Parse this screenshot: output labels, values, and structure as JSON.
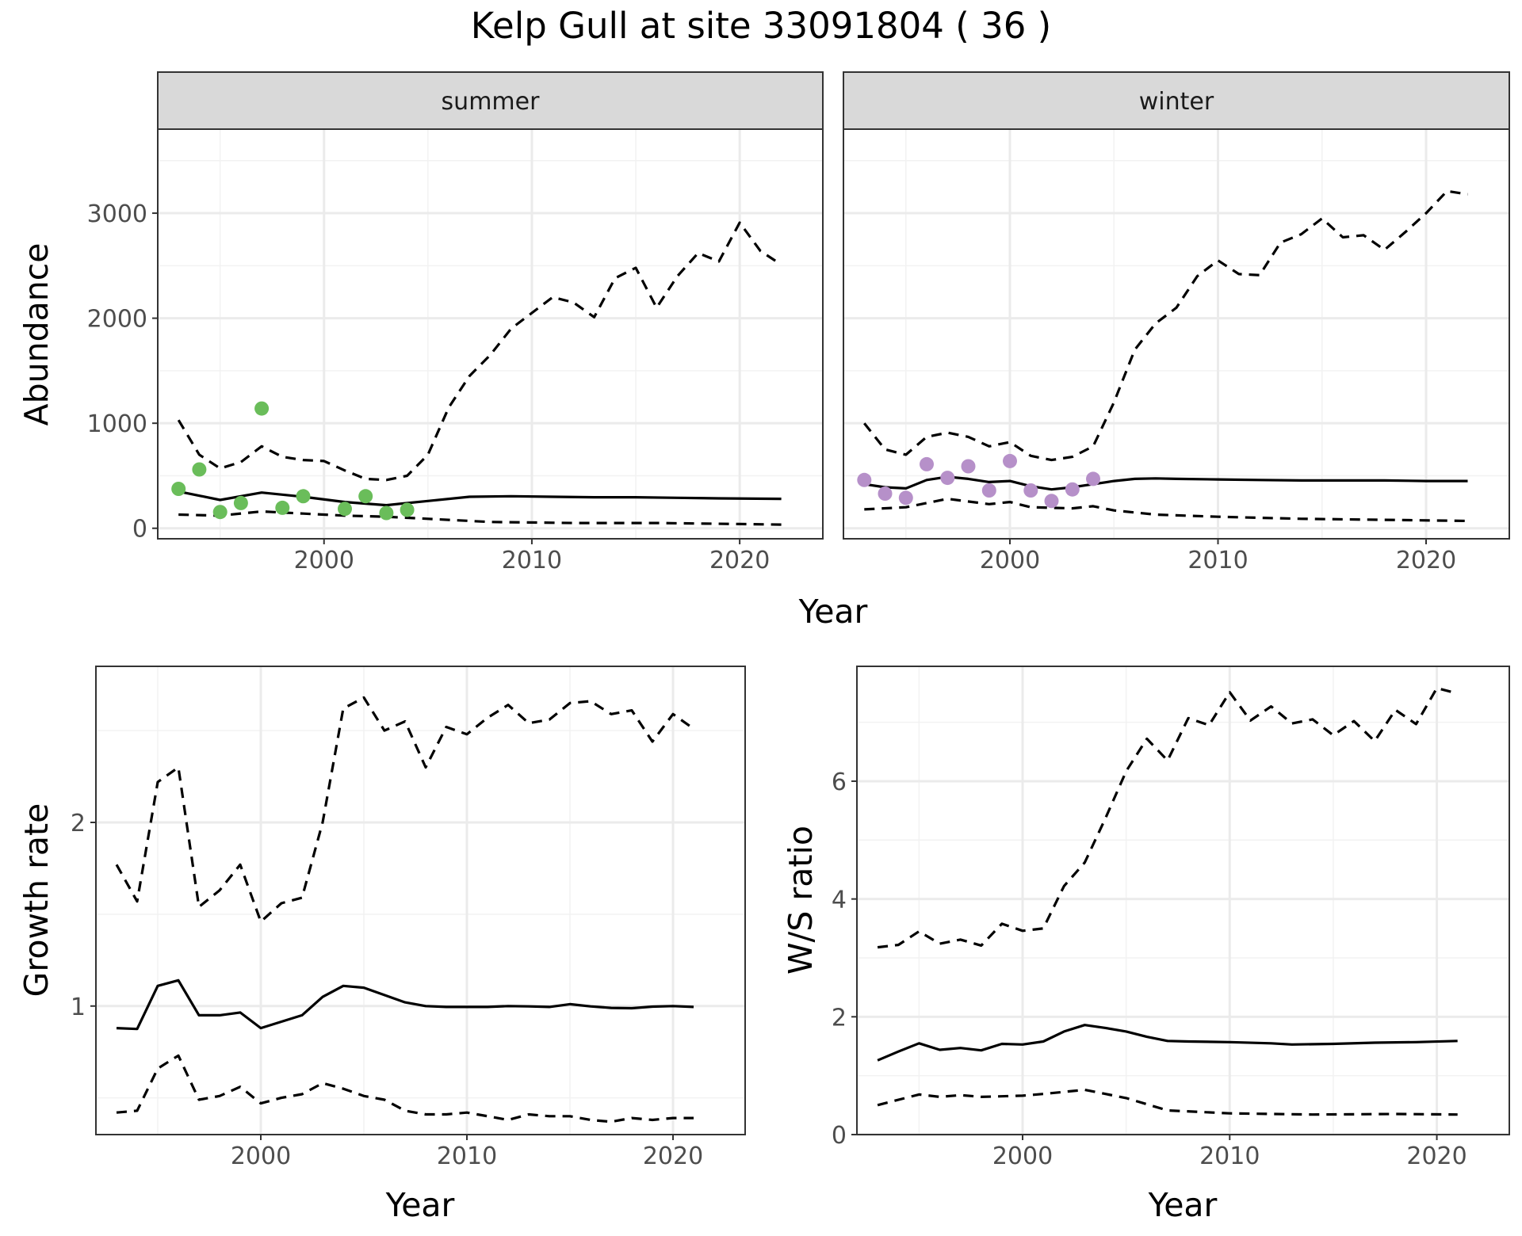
{
  "title": "Kelp Gull at site 33091804 ( 36 )",
  "colors": {
    "summer_points": "#6ABD5A",
    "winter_points": "#B690C9",
    "line": "#000000",
    "strip_bg": "#D9D9D9",
    "grid_major": "#EBEBEB",
    "grid_minor": "#F2F2F2"
  },
  "chart_data": [
    {
      "type": "line",
      "panel": "summer",
      "strip_label": "summer",
      "xlabel": "Year",
      "ylabel": "Abundance",
      "xlim": [
        1992,
        2024
      ],
      "ylim": [
        -100,
        3800
      ],
      "x_ticks": [
        2000,
        2010,
        2020
      ],
      "y_ticks": [
        0,
        1000,
        2000,
        3000
      ],
      "grid": true,
      "lines": [
        {
          "name": "",
          "style": "solid",
          "x": [
            1993,
            1995,
            1997,
            1999,
            2001,
            2003,
            2005,
            2007,
            2009,
            2011,
            2013,
            2015,
            2017,
            2019,
            2022
          ],
          "y": [
            350,
            270,
            340,
            300,
            250,
            220,
            260,
            300,
            305,
            300,
            295,
            295,
            290,
            285,
            280
          ]
        },
        {
          "name": "",
          "style": "dashed",
          "x": [
            1993,
            1994,
            1995,
            1996,
            1997,
            1998,
            1999,
            2000,
            2001,
            2002,
            2003,
            2004,
            2005,
            2006,
            2007,
            2008,
            2009,
            2010,
            2011,
            2012,
            2013,
            2014,
            2015,
            2016,
            2017,
            2018,
            2019,
            2020,
            2021,
            2022
          ],
          "y": [
            1030,
            700,
            570,
            630,
            780,
            680,
            650,
            640,
            550,
            470,
            460,
            500,
            700,
            1150,
            1450,
            1650,
            1900,
            2050,
            2200,
            2150,
            2010,
            2380,
            2480,
            2100,
            2400,
            2620,
            2540,
            2910,
            2640,
            2510
          ]
        },
        {
          "name": "",
          "style": "dashed",
          "x": [
            1993,
            1995,
            1997,
            1999,
            2001,
            2003,
            2005,
            2008,
            2012,
            2016,
            2020,
            2022
          ],
          "y": [
            130,
            120,
            160,
            140,
            120,
            110,
            90,
            60,
            50,
            50,
            40,
            35
          ]
        }
      ],
      "points": {
        "x": [
          1993,
          1994,
          1995,
          1996,
          1997,
          1998,
          1999,
          2001,
          2002,
          2003,
          2004
        ],
        "y": [
          375,
          560,
          155,
          240,
          1140,
          195,
          305,
          185,
          305,
          145,
          175
        ]
      }
    },
    {
      "type": "line",
      "panel": "winter",
      "strip_label": "winter",
      "xlabel": "Year",
      "ylabel": "",
      "xlim": [
        1992,
        2024
      ],
      "ylim": [
        -100,
        3800
      ],
      "x_ticks": [
        2000,
        2010,
        2020
      ],
      "y_ticks": [
        0,
        1000,
        2000,
        3000
      ],
      "grid": true,
      "lines": [
        {
          "name": "",
          "style": "solid",
          "x": [
            1993,
            1994,
            1995,
            1996,
            1997,
            1998,
            1999,
            2000,
            2001,
            2002,
            2003,
            2004,
            2005,
            2006,
            2007,
            2008,
            2010,
            2012,
            2014,
            2016,
            2018,
            2020,
            2022
          ],
          "y": [
            420,
            390,
            380,
            460,
            490,
            470,
            440,
            450,
            400,
            370,
            390,
            420,
            450,
            470,
            475,
            470,
            465,
            460,
            455,
            455,
            455,
            450,
            450
          ]
        },
        {
          "name": "",
          "style": "dashed",
          "x": [
            1993,
            1994,
            1995,
            1996,
            1997,
            1998,
            1999,
            2000,
            2001,
            2002,
            2003,
            2004,
            2005,
            2006,
            2007,
            2008,
            2009,
            2010,
            2011,
            2012,
            2013,
            2014,
            2015,
            2016,
            2017,
            2018,
            2019,
            2020,
            2021,
            2022
          ],
          "y": [
            1000,
            750,
            700,
            870,
            910,
            870,
            780,
            820,
            690,
            650,
            680,
            780,
            1200,
            1700,
            1950,
            2100,
            2400,
            2550,
            2420,
            2410,
            2720,
            2800,
            2950,
            2770,
            2790,
            2650,
            2820,
            3000,
            3210,
            3180
          ]
        },
        {
          "name": "",
          "style": "dashed",
          "x": [
            1993,
            1995,
            1997,
            1999,
            2000,
            2001,
            2003,
            2004,
            2005,
            2007,
            2010,
            2014,
            2018,
            2022
          ],
          "y": [
            180,
            200,
            280,
            230,
            250,
            200,
            190,
            210,
            170,
            130,
            110,
            90,
            80,
            70
          ]
        }
      ],
      "points": {
        "x": [
          1993,
          1994,
          1995,
          1996,
          1997,
          1998,
          1999,
          2000,
          2001,
          2002,
          2003,
          2004
        ],
        "y": [
          460,
          330,
          290,
          610,
          480,
          590,
          360,
          640,
          360,
          260,
          370,
          470
        ]
      }
    },
    {
      "type": "line",
      "panel": "growth",
      "xlabel": "Year",
      "ylabel": "Growth rate",
      "xlim": [
        1992,
        2023.5
      ],
      "ylim": [
        0.3,
        2.85
      ],
      "x_ticks": [
        2000,
        2010,
        2020
      ],
      "y_ticks": [
        1,
        2
      ],
      "grid": true,
      "lines": [
        {
          "name": "",
          "style": "solid",
          "x": [
            1993,
            1994,
            1995,
            1996,
            1997,
            1998,
            1999,
            2000,
            2001,
            2002,
            2003,
            2004,
            2005,
            2006,
            2007,
            2008,
            2009,
            2010,
            2011,
            2012,
            2013,
            2014,
            2015,
            2016,
            2017,
            2018,
            2019,
            2020,
            2021
          ],
          "y": [
            0.88,
            0.875,
            1.11,
            1.14,
            0.95,
            0.95,
            0.965,
            0.88,
            0.915,
            0.95,
            1.05,
            1.11,
            1.1,
            1.06,
            1.02,
            1.0,
            0.995,
            0.995,
            0.995,
            1.0,
            0.998,
            0.995,
            1.01,
            0.998,
            0.99,
            0.988,
            0.997,
            1.0,
            0.995
          ]
        },
        {
          "name": "",
          "style": "dashed",
          "x": [
            1993,
            1994,
            1995,
            1996,
            1997,
            1998,
            1999,
            2000,
            2001,
            2002,
            2003,
            2004,
            2005,
            2006,
            2007,
            2008,
            2009,
            2010,
            2011,
            2012,
            2013,
            2014,
            2015,
            2016,
            2017,
            2018,
            2019,
            2020,
            2021
          ],
          "y": [
            1.77,
            1.57,
            2.22,
            2.3,
            1.54,
            1.63,
            1.77,
            1.46,
            1.56,
            1.59,
            2.0,
            2.62,
            2.68,
            2.5,
            2.55,
            2.3,
            2.52,
            2.48,
            2.57,
            2.64,
            2.54,
            2.56,
            2.65,
            2.66,
            2.59,
            2.61,
            2.44,
            2.59,
            2.51
          ]
        },
        {
          "name": "",
          "style": "dashed",
          "x": [
            1993,
            1994,
            1995,
            1996,
            1997,
            1998,
            1999,
            2000,
            2001,
            2002,
            2003,
            2004,
            2005,
            2006,
            2007,
            2008,
            2009,
            2010,
            2011,
            2012,
            2013,
            2014,
            2015,
            2016,
            2017,
            2018,
            2019,
            2020,
            2021
          ],
          "y": [
            0.42,
            0.43,
            0.66,
            0.73,
            0.49,
            0.51,
            0.56,
            0.47,
            0.5,
            0.52,
            0.58,
            0.55,
            0.51,
            0.49,
            0.43,
            0.41,
            0.41,
            0.42,
            0.4,
            0.38,
            0.41,
            0.4,
            0.4,
            0.38,
            0.37,
            0.39,
            0.38,
            0.39,
            0.39
          ]
        }
      ]
    },
    {
      "type": "line",
      "panel": "ws_ratio",
      "xlabel": "Year",
      "ylabel": "W/S ratio",
      "xlim": [
        1992,
        2023.5
      ],
      "ylim": [
        0,
        7.95
      ],
      "x_ticks": [
        2000,
        2010,
        2020
      ],
      "y_ticks": [
        0,
        2,
        4,
        6
      ],
      "grid": true,
      "lines": [
        {
          "name": "",
          "style": "solid",
          "x": [
            1993,
            1994,
            1995,
            1996,
            1997,
            1998,
            1999,
            2000,
            2001,
            2002,
            2003,
            2004,
            2005,
            2006,
            2007,
            2008,
            2010,
            2012,
            2013,
            2015,
            2017,
            2019,
            2021
          ],
          "y": [
            1.26,
            1.41,
            1.55,
            1.44,
            1.47,
            1.43,
            1.54,
            1.53,
            1.58,
            1.75,
            1.86,
            1.81,
            1.75,
            1.66,
            1.59,
            1.58,
            1.57,
            1.55,
            1.53,
            1.54,
            1.56,
            1.57,
            1.59
          ]
        },
        {
          "name": "",
          "style": "dashed",
          "x": [
            1993,
            1994,
            1995,
            1996,
            1997,
            1998,
            1999,
            2000,
            2001,
            2002,
            2003,
            2004,
            2005,
            2006,
            2007,
            2008,
            2009,
            2010,
            2011,
            2012,
            2013,
            2014,
            2015,
            2016,
            2017,
            2018,
            2019,
            2020,
            2021
          ],
          "y": [
            3.18,
            3.22,
            3.45,
            3.24,
            3.31,
            3.21,
            3.58,
            3.46,
            3.5,
            4.22,
            4.62,
            5.37,
            6.17,
            6.72,
            6.35,
            7.07,
            6.95,
            7.51,
            7.03,
            7.27,
            6.98,
            7.05,
            6.78,
            7.02,
            6.68,
            7.21,
            6.97,
            7.58,
            7.49
          ]
        },
        {
          "name": "",
          "style": "dashed",
          "x": [
            1993,
            1995,
            1996,
            1997,
            1998,
            2000,
            2001,
            2003,
            2005,
            2007,
            2010,
            2014,
            2018,
            2021
          ],
          "y": [
            0.5,
            0.68,
            0.64,
            0.67,
            0.64,
            0.66,
            0.69,
            0.76,
            0.62,
            0.41,
            0.36,
            0.34,
            0.35,
            0.34
          ]
        }
      ]
    }
  ]
}
